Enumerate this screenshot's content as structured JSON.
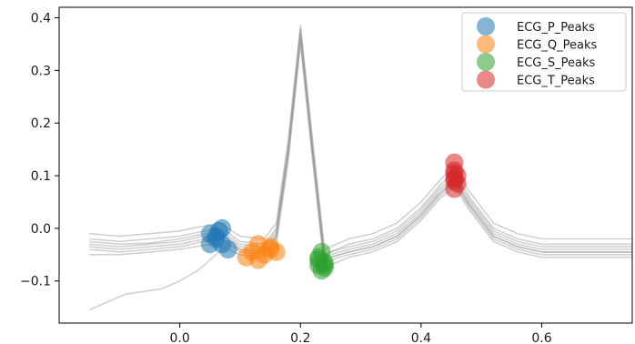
{
  "chart_data": {
    "type": "line",
    "title": "",
    "xlabel": "",
    "ylabel": "",
    "xlim": [
      -0.2,
      0.75
    ],
    "ylim": [
      -0.18,
      0.42
    ],
    "x_ticks": [
      0.0,
      0.2,
      0.4,
      0.6
    ],
    "x_tick_labels": [
      "0.0",
      "0.2",
      "0.4",
      "0.6"
    ],
    "y_ticks": [
      -0.1,
      0.0,
      0.1,
      0.2,
      0.3,
      0.4
    ],
    "y_tick_labels": [
      "−0.1",
      "0.0",
      "0.1",
      "0.2",
      "0.3",
      "0.4"
    ],
    "grid": false,
    "legend_position": "top-right",
    "traces": [
      {
        "x": [
          -0.15,
          -0.1,
          -0.05,
          0.0,
          0.05,
          0.07,
          0.1,
          0.14,
          0.16,
          0.18,
          0.2,
          0.22,
          0.24,
          0.25,
          0.28,
          0.32,
          0.36,
          0.4,
          0.43,
          0.455,
          0.48,
          0.52,
          0.56,
          0.6,
          0.65,
          0.7,
          0.75
        ],
        "y": [
          -0.03,
          -0.035,
          -0.03,
          -0.025,
          -0.012,
          -0.01,
          -0.035,
          -0.04,
          -0.01,
          0.15,
          0.37,
          0.15,
          -0.06,
          -0.05,
          -0.04,
          -0.03,
          -0.01,
          0.03,
          0.07,
          0.095,
          0.05,
          -0.01,
          -0.03,
          -0.04,
          -0.04,
          -0.04,
          -0.04
        ]
      },
      {
        "x": [
          -0.15,
          -0.1,
          -0.05,
          0.0,
          0.05,
          0.07,
          0.1,
          0.14,
          0.16,
          0.18,
          0.2,
          0.22,
          0.24,
          0.25,
          0.28,
          0.32,
          0.36,
          0.4,
          0.43,
          0.455,
          0.48,
          0.52,
          0.56,
          0.6,
          0.65,
          0.7,
          0.75
        ],
        "y": [
          -0.02,
          -0.025,
          -0.02,
          -0.015,
          -0.003,
          0.0,
          -0.025,
          -0.03,
          0.0,
          0.16,
          0.38,
          0.16,
          -0.05,
          -0.045,
          -0.03,
          -0.02,
          0.0,
          0.04,
          0.08,
          0.11,
          0.06,
          0.0,
          -0.02,
          -0.03,
          -0.03,
          -0.03,
          -0.03
        ]
      },
      {
        "x": [
          -0.15,
          -0.1,
          -0.05,
          0.0,
          0.05,
          0.07,
          0.1,
          0.14,
          0.16,
          0.18,
          0.2,
          0.22,
          0.24,
          0.25,
          0.28,
          0.32,
          0.36,
          0.4,
          0.43,
          0.455,
          0.48,
          0.52,
          0.56,
          0.6,
          0.65,
          0.7,
          0.75
        ],
        "y": [
          -0.04,
          -0.045,
          -0.04,
          -0.035,
          -0.022,
          -0.02,
          -0.045,
          -0.05,
          -0.02,
          0.14,
          0.36,
          0.14,
          -0.07,
          -0.06,
          -0.05,
          -0.04,
          -0.02,
          0.02,
          0.06,
          0.085,
          0.04,
          -0.02,
          -0.04,
          -0.05,
          -0.05,
          -0.05,
          -0.05
        ]
      },
      {
        "x": [
          -0.15,
          -0.1,
          -0.05,
          0.0,
          0.05,
          0.07,
          0.1,
          0.14,
          0.16,
          0.18,
          0.2,
          0.22,
          0.24,
          0.25,
          0.28,
          0.32,
          0.36,
          0.4,
          0.43,
          0.455,
          0.48,
          0.52,
          0.56,
          0.6,
          0.65,
          0.7,
          0.75
        ],
        "y": [
          -0.01,
          -0.015,
          -0.01,
          -0.005,
          0.007,
          0.008,
          -0.015,
          -0.02,
          0.01,
          0.17,
          0.385,
          0.17,
          -0.04,
          -0.035,
          -0.02,
          -0.01,
          0.01,
          0.05,
          0.09,
          0.12,
          0.07,
          0.01,
          -0.01,
          -0.02,
          -0.02,
          -0.02,
          -0.02
        ]
      },
      {
        "x": [
          -0.15,
          -0.1,
          -0.05,
          0.0,
          0.05,
          0.07,
          0.1,
          0.14,
          0.16,
          0.18,
          0.2,
          0.22,
          0.24,
          0.25,
          0.28,
          0.32,
          0.36,
          0.4,
          0.43,
          0.455,
          0.48,
          0.52,
          0.56,
          0.6,
          0.65,
          0.7,
          0.75
        ],
        "y": [
          -0.05,
          -0.05,
          -0.045,
          -0.04,
          -0.03,
          -0.035,
          -0.05,
          -0.055,
          -0.03,
          0.13,
          0.35,
          0.13,
          -0.08,
          -0.07,
          -0.055,
          -0.045,
          -0.025,
          0.015,
          0.055,
          0.08,
          0.035,
          -0.025,
          -0.045,
          -0.055,
          -0.055,
          -0.055,
          -0.055
        ]
      },
      {
        "x": [
          -0.15,
          -0.1,
          -0.05,
          0.0,
          0.05,
          0.07,
          0.1,
          0.14,
          0.16,
          0.18,
          0.2,
          0.22,
          0.24,
          0.25,
          0.28,
          0.32,
          0.36,
          0.4,
          0.43,
          0.455,
          0.48,
          0.52,
          0.56,
          0.6,
          0.65,
          0.7,
          0.75
        ],
        "y": [
          -0.025,
          -0.03,
          -0.028,
          -0.02,
          -0.008,
          -0.006,
          -0.03,
          -0.035,
          -0.005,
          0.155,
          0.375,
          0.155,
          -0.055,
          -0.045,
          -0.035,
          -0.025,
          -0.005,
          0.035,
          0.075,
          0.1,
          0.055,
          -0.005,
          -0.025,
          -0.035,
          -0.035,
          -0.035,
          -0.035
        ]
      },
      {
        "x": [
          -0.15,
          -0.1,
          -0.05,
          0.0,
          0.05,
          0.07,
          0.1,
          0.14,
          0.16,
          0.18,
          0.2,
          0.22,
          0.24,
          0.25,
          0.28,
          0.32,
          0.36,
          0.4,
          0.43,
          0.455,
          0.48,
          0.52,
          0.56,
          0.6,
          0.65,
          0.7,
          0.75
        ],
        "y": [
          -0.035,
          -0.04,
          -0.035,
          -0.03,
          -0.018,
          -0.015,
          -0.04,
          -0.045,
          -0.015,
          0.145,
          0.365,
          0.145,
          -0.065,
          -0.055,
          -0.045,
          -0.035,
          -0.015,
          0.025,
          0.065,
          0.09,
          0.045,
          -0.015,
          -0.035,
          -0.045,
          -0.045,
          -0.045,
          -0.045
        ]
      },
      {
        "x": [
          -0.15,
          -0.12,
          -0.09,
          -0.06,
          -0.03,
          0.0,
          0.03,
          0.06,
          0.08,
          0.1,
          0.14,
          0.16,
          0.18,
          0.2,
          0.22,
          0.24,
          0.25,
          0.28,
          0.32,
          0.36,
          0.4,
          0.43,
          0.455,
          0.48,
          0.52,
          0.56,
          0.6,
          0.65,
          0.7,
          0.75
        ],
        "y": [
          -0.155,
          -0.14,
          -0.125,
          -0.12,
          -0.115,
          -0.1,
          -0.08,
          -0.05,
          -0.03,
          -0.04,
          -0.045,
          -0.015,
          0.145,
          0.36,
          0.145,
          -0.065,
          -0.055,
          -0.045,
          -0.035,
          -0.015,
          0.025,
          0.065,
          0.09,
          0.045,
          -0.015,
          -0.035,
          -0.045,
          -0.045,
          -0.045,
          -0.045
        ]
      }
    ],
    "series": [
      {
        "name": "ECG_P_Peaks",
        "color": "#1f77b4",
        "points": [
          [
            0.05,
            -0.01
          ],
          [
            0.06,
            -0.02
          ],
          [
            0.07,
            0.0
          ],
          [
            0.05,
            -0.03
          ],
          [
            0.08,
            -0.04
          ],
          [
            0.06,
            -0.015
          ],
          [
            0.07,
            -0.03
          ],
          [
            0.065,
            -0.005
          ]
        ]
      },
      {
        "name": "ECG_Q_Peaks",
        "color": "#ff7f0e",
        "points": [
          [
            0.11,
            -0.055
          ],
          [
            0.13,
            -0.03
          ],
          [
            0.15,
            -0.035
          ],
          [
            0.14,
            -0.05
          ],
          [
            0.16,
            -0.045
          ],
          [
            0.12,
            -0.045
          ],
          [
            0.15,
            -0.04
          ],
          [
            0.13,
            -0.06
          ]
        ]
      },
      {
        "name": "ECG_S_Peaks",
        "color": "#2ca02c",
        "points": [
          [
            0.23,
            -0.06
          ],
          [
            0.24,
            -0.075
          ],
          [
            0.235,
            -0.045
          ],
          [
            0.23,
            -0.07
          ],
          [
            0.24,
            -0.065
          ],
          [
            0.235,
            -0.08
          ],
          [
            0.23,
            -0.055
          ],
          [
            0.24,
            -0.07
          ]
        ]
      },
      {
        "name": "ECG_T_Peaks",
        "color": "#d62728",
        "points": [
          [
            0.455,
            0.125
          ],
          [
            0.455,
            0.095
          ],
          [
            0.46,
            0.085
          ],
          [
            0.455,
            0.105
          ],
          [
            0.455,
            0.075
          ],
          [
            0.46,
            0.1
          ],
          [
            0.455,
            0.09
          ],
          [
            0.455,
            0.11
          ]
        ]
      }
    ]
  }
}
